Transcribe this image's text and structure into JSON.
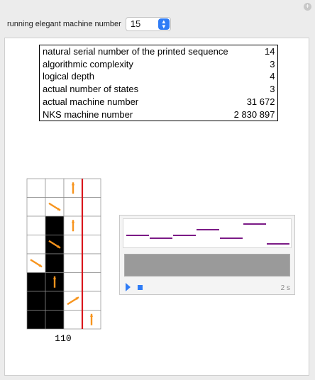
{
  "window": {
    "corner_icon": "plus-circle-icon"
  },
  "control": {
    "label": "running elegant machine number",
    "selected_value": "15",
    "arrow_up": "▲",
    "arrow_down": "▼"
  },
  "info_table": [
    {
      "label": "natural serial number of the printed sequence",
      "value": "14"
    },
    {
      "label": "algorithmic complexity",
      "value": "3"
    },
    {
      "label": "logical depth",
      "value": "4"
    },
    {
      "label": "actual number of states",
      "value": "3"
    },
    {
      "label": "actual machine number",
      "value": "31 672"
    },
    {
      "label": "NKS machine number",
      "value": "2 830 897"
    }
  ],
  "evolution": {
    "columns": 4,
    "rows": 8,
    "black_cells": [
      [
        1,
        2
      ],
      [
        1,
        3
      ],
      [
        1,
        4
      ],
      [
        0,
        5
      ],
      [
        1,
        5
      ],
      [
        0,
        6
      ],
      [
        1,
        6
      ],
      [
        0,
        7
      ],
      [
        1,
        7
      ]
    ],
    "head_arrows": [
      {
        "row": 0,
        "col": 2,
        "dir": "up"
      },
      {
        "row": 1,
        "col": 1,
        "dir": "down-right"
      },
      {
        "row": 2,
        "col": 2,
        "dir": "up"
      },
      {
        "row": 3,
        "col": 1,
        "dir": "down-right"
      },
      {
        "row": 4,
        "col": 0,
        "dir": "down-right"
      },
      {
        "row": 5,
        "col": 1,
        "dir": "up"
      },
      {
        "row": 6,
        "col": 2,
        "dir": "up-right"
      },
      {
        "row": 7,
        "col": 3,
        "dir": "up"
      }
    ],
    "boundary_after_col": 3,
    "arrow_color": "#f7941d",
    "boundary_color": "#d9161c",
    "output_tape": "110"
  },
  "sound_player": {
    "note_color": "#7b1a86",
    "notes": [
      3,
      2,
      3,
      5,
      2,
      7,
      0
    ],
    "play_icon": "play-icon",
    "stop_icon": "stop-icon",
    "duration": "2 s"
  }
}
